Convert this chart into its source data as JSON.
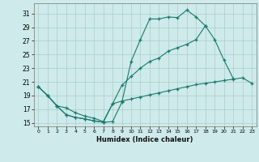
{
  "xlabel": "Humidex (Indice chaleur)",
  "bg_color": "#ceeaea",
  "grid_color": "#a8cecc",
  "line_color": "#1a7a6e",
  "xlim": [
    -0.5,
    23.5
  ],
  "ylim": [
    14.5,
    32.5
  ],
  "yticks": [
    15,
    17,
    19,
    21,
    23,
    25,
    27,
    29,
    31
  ],
  "xticks": [
    0,
    1,
    2,
    3,
    4,
    5,
    6,
    7,
    8,
    9,
    10,
    11,
    12,
    13,
    14,
    15,
    16,
    17,
    18,
    19,
    20,
    21,
    22,
    23
  ],
  "s1_x": [
    0,
    1,
    2,
    3,
    4,
    5,
    6,
    7,
    8,
    9,
    10,
    11,
    12,
    13,
    14,
    15,
    16,
    17,
    18
  ],
  "s1_y": [
    20.3,
    19.0,
    17.5,
    16.2,
    15.8,
    15.6,
    15.3,
    15.1,
    15.2,
    18.0,
    24.0,
    27.2,
    30.2,
    30.2,
    30.5,
    30.4,
    31.5,
    30.5,
    29.2
  ],
  "s2_x": [
    0,
    1,
    2,
    3,
    4,
    5,
    6,
    7,
    8,
    9,
    10,
    11,
    12,
    13,
    14,
    15,
    16,
    17,
    18,
    19,
    20,
    21
  ],
  "s2_y": [
    20.3,
    19.0,
    17.5,
    16.2,
    15.8,
    15.6,
    15.3,
    15.1,
    17.8,
    20.5,
    21.8,
    23.0,
    24.0,
    24.5,
    25.5,
    26.0,
    26.5,
    27.2,
    29.2,
    27.2,
    24.2,
    21.5
  ],
  "s3_x": [
    0,
    1,
    2,
    3,
    4,
    5,
    6,
    7,
    8,
    9,
    10,
    11,
    12,
    13,
    14,
    15,
    16,
    17,
    18,
    19,
    20,
    21,
    22,
    23
  ],
  "s3_y": [
    20.3,
    19.0,
    17.5,
    17.2,
    16.5,
    16.0,
    15.7,
    15.2,
    17.8,
    18.2,
    18.5,
    18.8,
    19.1,
    19.4,
    19.7,
    20.0,
    20.3,
    20.6,
    20.8,
    21.0,
    21.2,
    21.4,
    21.6,
    20.8
  ]
}
